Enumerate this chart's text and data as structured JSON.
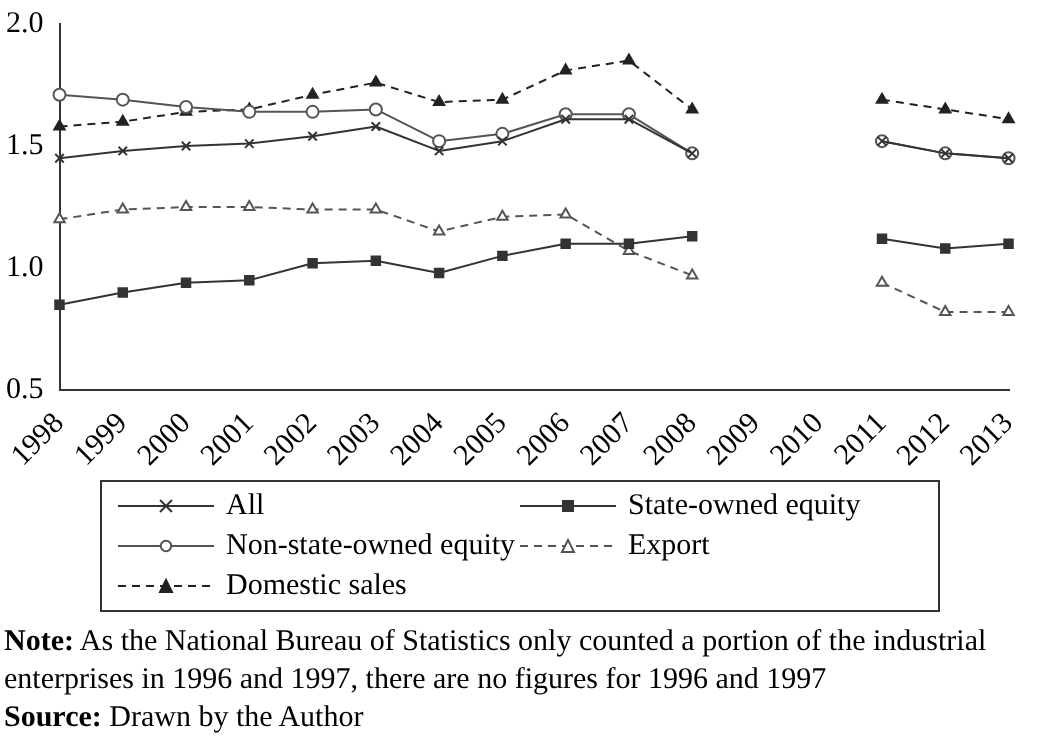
{
  "chart_data": {
    "type": "line",
    "categories": [
      "1998",
      "1999",
      "2000",
      "2001",
      "2002",
      "2003",
      "2004",
      "2005",
      "2006",
      "2007",
      "2008",
      "2009",
      "2010",
      "2011",
      "2012",
      "2013"
    ],
    "series": [
      {
        "name": "All",
        "color": "#333333",
        "marker": "cross",
        "line_style": "solid",
        "values": [
          1.45,
          1.48,
          1.5,
          1.51,
          1.54,
          1.58,
          1.48,
          1.52,
          1.61,
          1.61,
          1.47,
          null,
          null,
          1.52,
          1.47,
          1.45
        ]
      },
      {
        "name": "State-owned equity",
        "color": "#333333",
        "marker": "square",
        "line_style": "solid",
        "values": [
          0.85,
          0.9,
          0.94,
          0.95,
          1.02,
          1.03,
          0.98,
          1.05,
          1.1,
          1.1,
          1.13,
          null,
          null,
          1.12,
          1.08,
          1.1
        ]
      },
      {
        "name": "Non-state-owned equity",
        "color": "#555555",
        "marker": "circle",
        "line_style": "solid",
        "values": [
          1.71,
          1.69,
          1.66,
          1.64,
          1.64,
          1.65,
          1.52,
          1.55,
          1.63,
          1.63,
          1.47,
          null,
          null,
          1.52,
          1.47,
          1.45
        ]
      },
      {
        "name": "Export",
        "color": "#555555",
        "marker": "triangle",
        "line_style": "dashed",
        "values": [
          1.2,
          1.24,
          1.25,
          1.25,
          1.24,
          1.24,
          1.15,
          1.21,
          1.22,
          1.07,
          0.97,
          null,
          null,
          0.94,
          0.82,
          0.82
        ]
      },
      {
        "name": "Domestic sales",
        "color": "#222222",
        "marker": "triangle",
        "line_style": "dashed",
        "values": [
          1.58,
          1.6,
          1.64,
          1.65,
          1.71,
          1.76,
          1.68,
          1.69,
          1.81,
          1.85,
          1.65,
          null,
          null,
          1.69,
          1.65,
          1.61
        ]
      }
    ],
    "ylim": [
      0.5,
      2.0
    ],
    "yticks": [
      0.5,
      {
        "value": 1.0,
        "label": "1.0"
      },
      1.5,
      {
        "value": 2.0,
        "label": "2.0"
      }
    ],
    "grid": false,
    "legend": "bottom",
    "annotations": [
      "Note: As the National Bureau of Statistics only counted a portion of the industrial enterprises in 1996 and 1997, there are no figures for 1996 and 1997",
      "Source: Drawn by the Author"
    ]
  }
}
